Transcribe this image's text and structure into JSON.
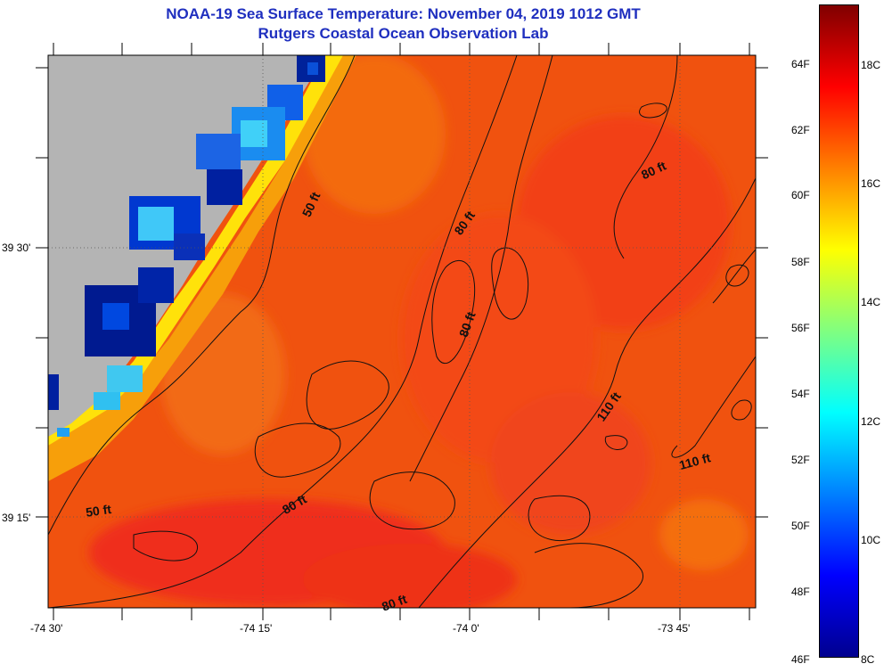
{
  "header": {
    "title": "NOAA-19 Sea Surface Temperature:  November 04, 2019 1012 GMT",
    "subtitle": "Rutgers Coastal Ocean Observation Lab"
  },
  "map": {
    "land_color": "#b4b4b4",
    "x_axis_labels": [
      {
        "text": "-74 30'",
        "lon": -74.5
      },
      {
        "text": "-74 15'",
        "lon": -74.25
      },
      {
        "text": "-74 0'",
        "lon": -74.0
      },
      {
        "text": "-73 45'",
        "lon": -73.75
      }
    ],
    "y_axis_labels": [
      {
        "text": "39 30'",
        "lat": 39.5
      },
      {
        "text": "39 15'",
        "lat": 39.25
      }
    ],
    "contour_labels": [
      {
        "text": "50 ft",
        "id": "contour-label-50ft-north"
      },
      {
        "text": "50 ft",
        "id": "contour-label-50ft-south"
      },
      {
        "text": "80 ft",
        "id": "contour-label-80ft-a"
      },
      {
        "text": "80 ft",
        "id": "contour-label-80ft-b"
      },
      {
        "text": "80 ft",
        "id": "contour-label-80ft-c"
      },
      {
        "text": "80 ft",
        "id": "contour-label-80ft-d"
      },
      {
        "text": "80 ft",
        "id": "contour-label-80ft-e"
      },
      {
        "text": "110 ft",
        "id": "contour-label-110ft-a"
      },
      {
        "text": "110 ft",
        "id": "contour-label-110ft-b"
      }
    ]
  },
  "colorbar": {
    "fahrenheit_labels": [
      "64F",
      "62F",
      "60F",
      "58F",
      "56F",
      "54F",
      "52F",
      "50F",
      "48F",
      "46F"
    ],
    "celsius_labels": [
      "18C",
      "16C",
      "14C",
      "12C",
      "10C",
      "8C"
    ],
    "colors": [
      "#00008f",
      "#0000ff",
      "#0080ff",
      "#00ffff",
      "#80ff80",
      "#ffff00",
      "#ff8000",
      "#ff0000",
      "#800000"
    ]
  }
}
